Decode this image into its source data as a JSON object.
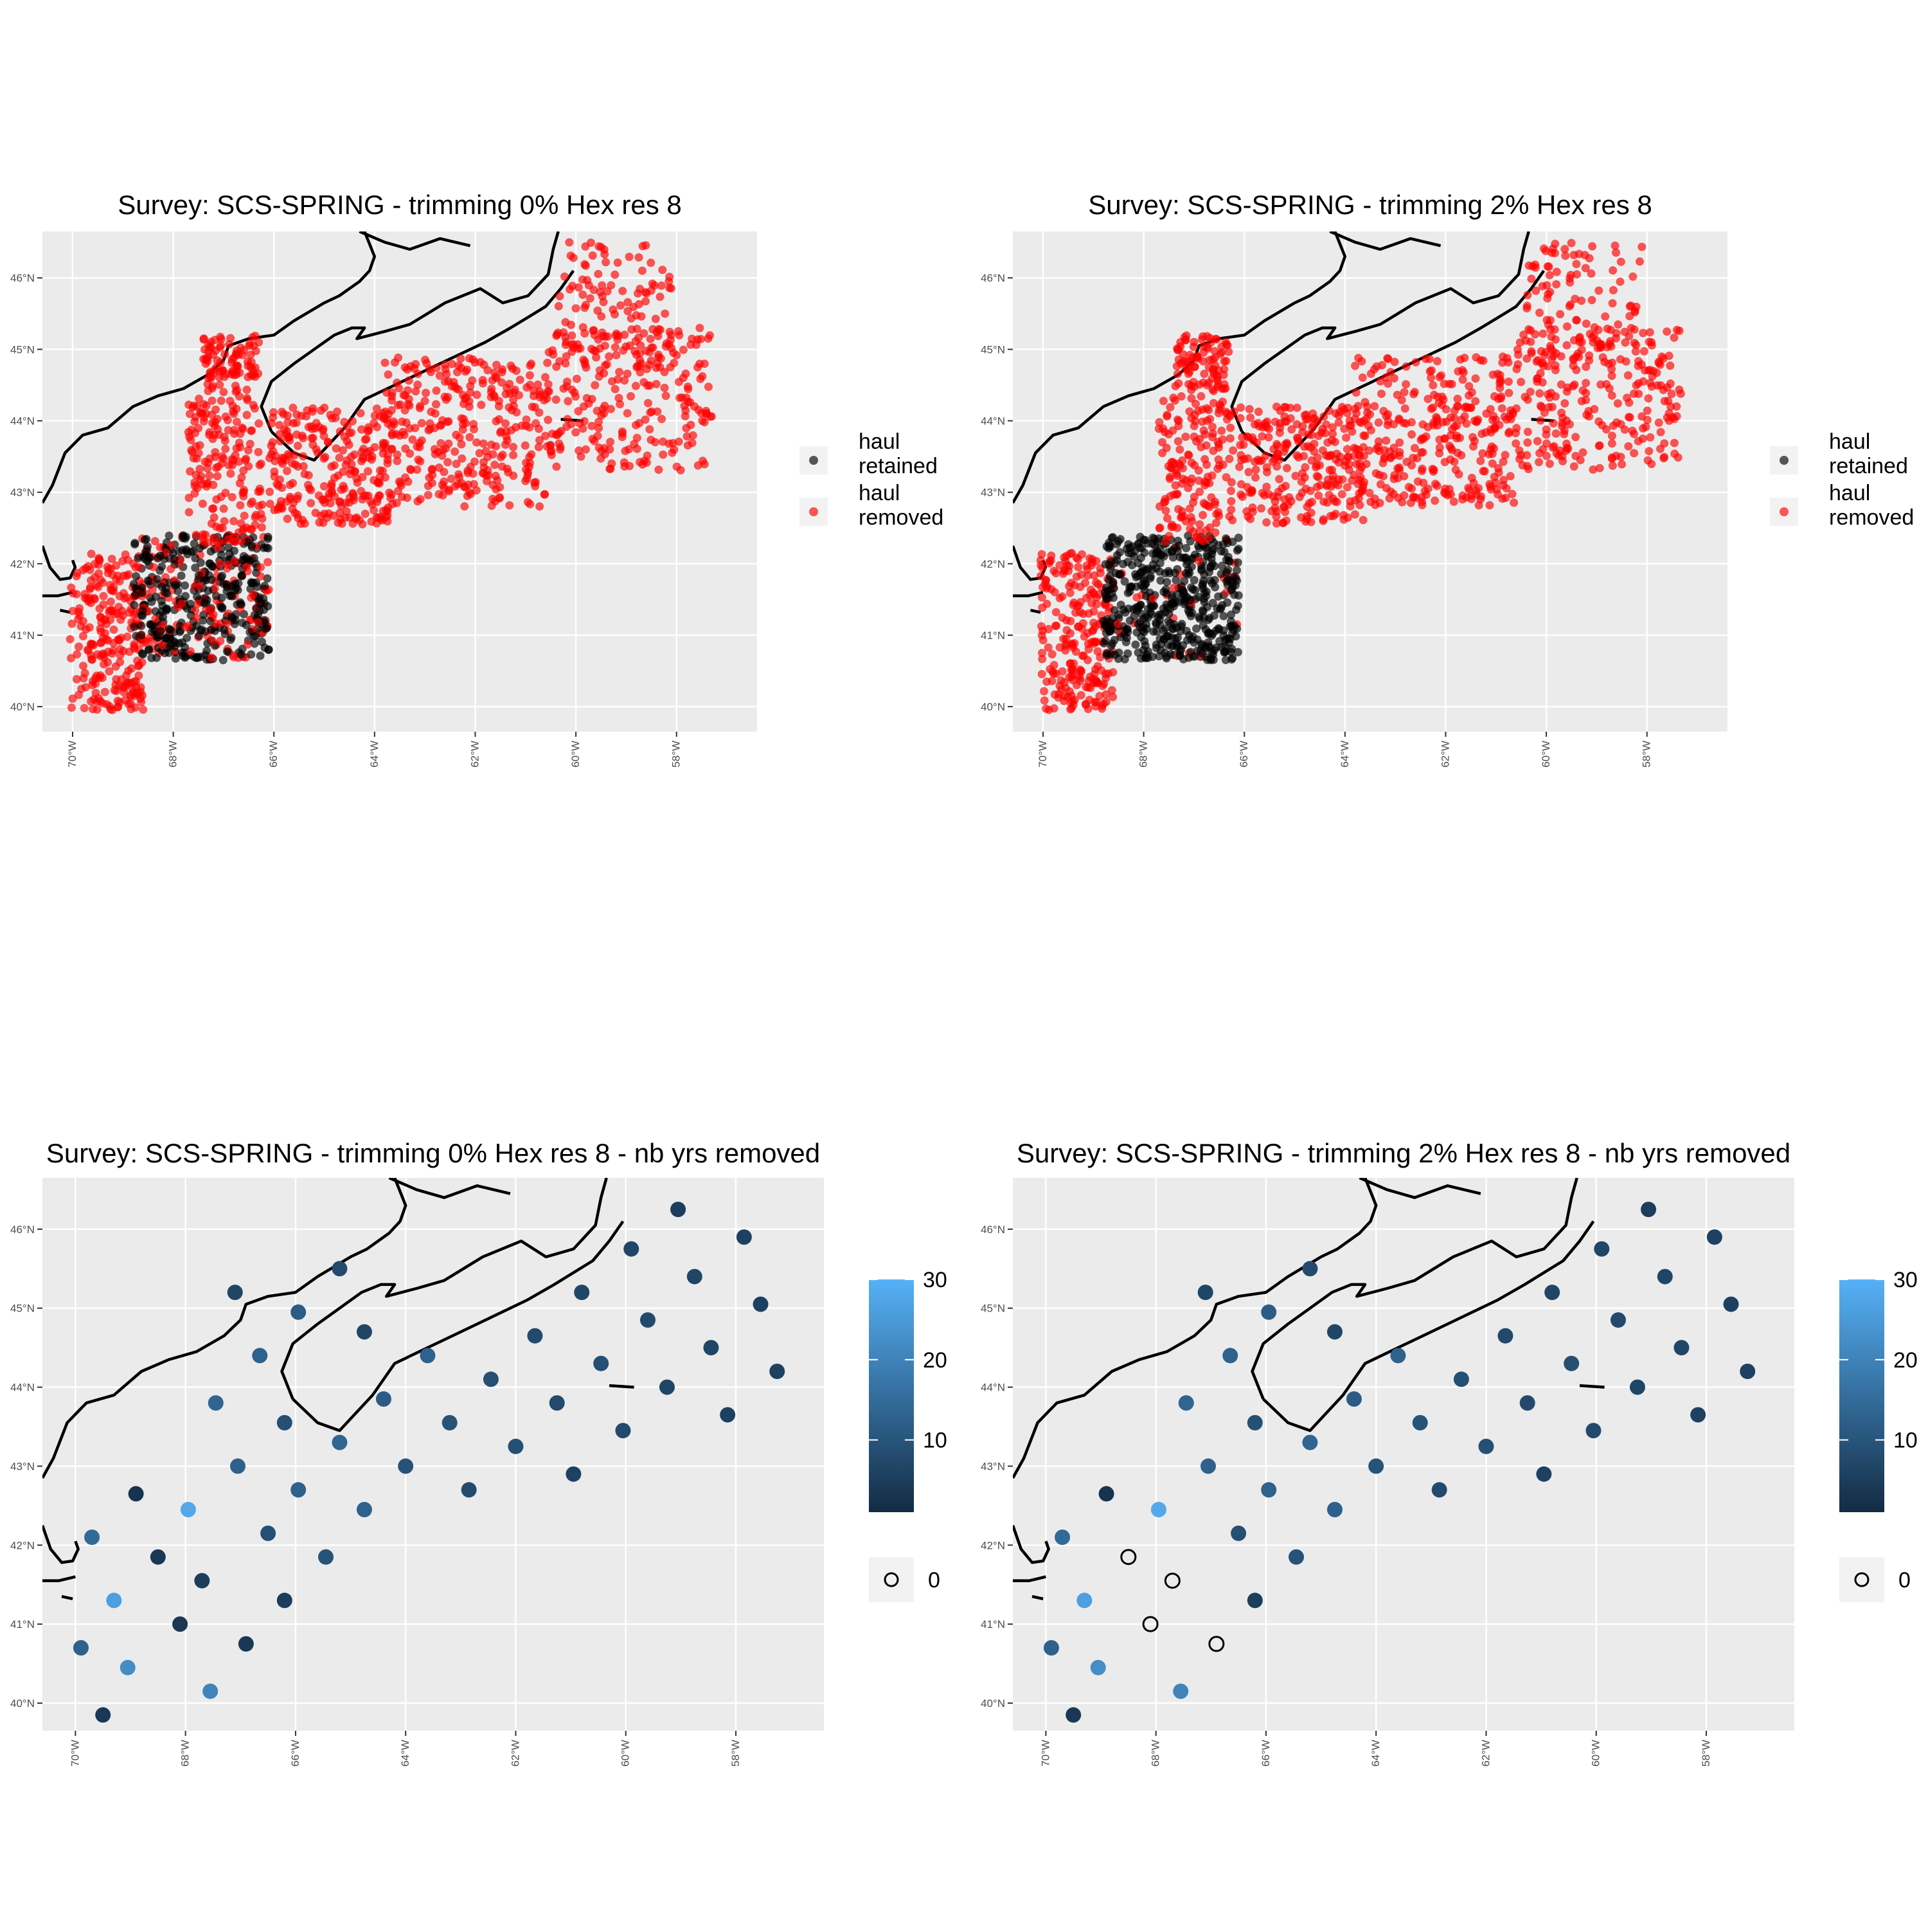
{
  "panels": [
    {
      "title": "Survey: SCS-SPRING - trimming 0% Hex res 8",
      "legend_type": "status",
      "legend": {
        "items": [
          {
            "label_lines": [
              "haul",
              "retained"
            ],
            "color": "#000000"
          },
          {
            "label_lines": [
              "haul",
              "removed"
            ],
            "color": "#ff0000"
          }
        ]
      },
      "hauls": {
        "retained_fraction_in_core": 0.7
      }
    },
    {
      "title": "Survey: SCS-SPRING - trimming 2% Hex res 8",
      "legend_type": "status",
      "legend": {
        "items": [
          {
            "label_lines": [
              "haul",
              "retained"
            ],
            "color": "#000000"
          },
          {
            "label_lines": [
              "haul",
              "removed"
            ],
            "color": "#ff0000"
          }
        ]
      },
      "hauls": {
        "retained_fraction_in_core": 0.95
      }
    },
    {
      "title": "Survey: SCS-SPRING - trimming 0% Hex res 8 - nb yrs removed",
      "legend_type": "gradient",
      "legend": {
        "ticks": [
          "30",
          "20",
          "10"
        ],
        "zero_label": "0",
        "low_color": "#132b43",
        "high_color": "#56b1f7"
      },
      "zero_points": []
    },
    {
      "title": "Survey: SCS-SPRING - trimming 2% Hex res 8 - nb yrs removed",
      "legend_type": "gradient",
      "legend": {
        "ticks": [
          "30",
          "20",
          "10"
        ],
        "zero_label": "0",
        "low_color": "#132b43",
        "high_color": "#56b1f7"
      },
      "zero_points": [
        [
          -68.5,
          41.85
        ],
        [
          -67.7,
          41.55
        ],
        [
          -68.1,
          41.0
        ],
        [
          -66.9,
          40.75
        ]
      ]
    }
  ],
  "axes": {
    "x_ticks": [
      "70°W",
      "68°W",
      "66°W",
      "64°W",
      "62°W",
      "60°W",
      "58°W"
    ],
    "y_ticks": [
      "40°N",
      "41°N",
      "42°N",
      "43°N",
      "44°N",
      "45°N",
      "46°N"
    ]
  },
  "chart_data": {
    "type": "scatter",
    "xlim": [
      -70.6,
      -56.4
    ],
    "ylim": [
      39.65,
      46.65
    ],
    "hex_points": [
      {
        "lon": -69.9,
        "lat": 40.7,
        "n": 12
      },
      {
        "lon": -69.5,
        "lat": 39.85,
        "n": 3
      },
      {
        "lon": -69.05,
        "lat": 40.45,
        "n": 22
      },
      {
        "lon": -69.3,
        "lat": 41.3,
        "n": 26
      },
      {
        "lon": -69.7,
        "lat": 42.1,
        "n": 14
      },
      {
        "lon": -68.9,
        "lat": 42.65,
        "n": 2
      },
      {
        "lon": -68.5,
        "lat": 41.85,
        "n": 3
      },
      {
        "lon": -67.95,
        "lat": 42.45,
        "n": 28
      },
      {
        "lon": -68.1,
        "lat": 41.0,
        "n": 3
      },
      {
        "lon": -67.7,
        "lat": 41.55,
        "n": 4
      },
      {
        "lon": -67.55,
        "lat": 40.15,
        "n": 20
      },
      {
        "lon": -66.9,
        "lat": 40.75,
        "n": 3
      },
      {
        "lon": -66.5,
        "lat": 42.15,
        "n": 8
      },
      {
        "lon": -67.05,
        "lat": 43.0,
        "n": 12
      },
      {
        "lon": -67.45,
        "lat": 43.8,
        "n": 13
      },
      {
        "lon": -66.65,
        "lat": 44.4,
        "n": 12
      },
      {
        "lon": -67.1,
        "lat": 45.2,
        "n": 6
      },
      {
        "lon": -66.2,
        "lat": 43.55,
        "n": 8
      },
      {
        "lon": -65.95,
        "lat": 44.95,
        "n": 11
      },
      {
        "lon": -66.2,
        "lat": 41.3,
        "n": 4
      },
      {
        "lon": -65.95,
        "lat": 42.7,
        "n": 12
      },
      {
        "lon": -65.45,
        "lat": 41.85,
        "n": 9
      },
      {
        "lon": -65.2,
        "lat": 43.3,
        "n": 13
      },
      {
        "lon": -65.2,
        "lat": 45.5,
        "n": 7
      },
      {
        "lon": -64.75,
        "lat": 44.7,
        "n": 6
      },
      {
        "lon": -64.75,
        "lat": 42.45,
        "n": 12
      },
      {
        "lon": -64.4,
        "lat": 43.85,
        "n": 11
      },
      {
        "lon": -64.0,
        "lat": 43.0,
        "n": 9
      },
      {
        "lon": -63.6,
        "lat": 44.4,
        "n": 12
      },
      {
        "lon": -63.2,
        "lat": 43.55,
        "n": 9
      },
      {
        "lon": -62.85,
        "lat": 42.7,
        "n": 7
      },
      {
        "lon": -62.45,
        "lat": 44.1,
        "n": 8
      },
      {
        "lon": -62.0,
        "lat": 43.25,
        "n": 8
      },
      {
        "lon": -61.65,
        "lat": 44.65,
        "n": 7
      },
      {
        "lon": -61.25,
        "lat": 43.8,
        "n": 7
      },
      {
        "lon": -60.95,
        "lat": 42.9,
        "n": 5
      },
      {
        "lon": -60.8,
        "lat": 45.2,
        "n": 6
      },
      {
        "lon": -60.45,
        "lat": 44.3,
        "n": 8
      },
      {
        "lon": -60.05,
        "lat": 43.45,
        "n": 7
      },
      {
        "lon": -59.9,
        "lat": 45.75,
        "n": 6
      },
      {
        "lon": -59.6,
        "lat": 44.85,
        "n": 7
      },
      {
        "lon": -59.25,
        "lat": 44.0,
        "n": 6
      },
      {
        "lon": -59.05,
        "lat": 46.25,
        "n": 4
      },
      {
        "lon": -58.75,
        "lat": 45.4,
        "n": 6
      },
      {
        "lon": -58.45,
        "lat": 44.5,
        "n": 6
      },
      {
        "lon": -58.15,
        "lat": 43.65,
        "n": 5
      },
      {
        "lon": -57.85,
        "lat": 45.9,
        "n": 5
      },
      {
        "lon": -57.55,
        "lat": 45.05,
        "n": 5
      },
      {
        "lon": -57.25,
        "lat": 44.2,
        "n": 5
      }
    ]
  }
}
